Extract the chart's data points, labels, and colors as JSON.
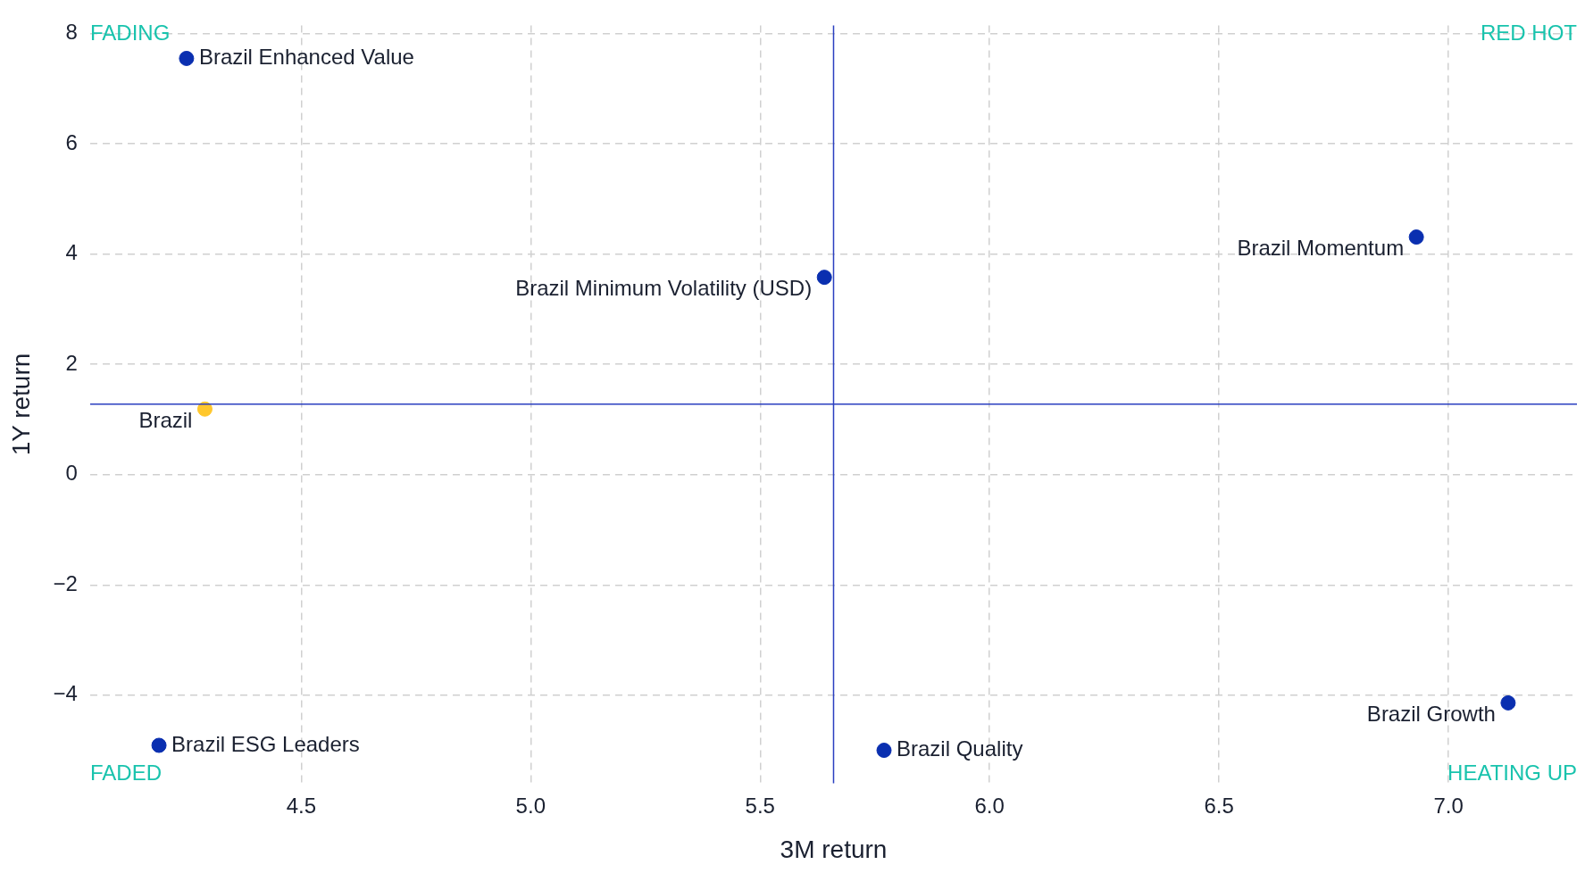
{
  "chart_data": {
    "type": "scatter",
    "xlabel": "3M return",
    "ylabel": "1Y return",
    "xlim": [
      4.04,
      7.28
    ],
    "ylim": [
      -5.6,
      8.15
    ],
    "xticks": [
      4.5,
      {
        "value": 5,
        "label": "5.0"
      },
      5.5,
      {
        "value": 6,
        "label": "6.0"
      },
      6.5,
      {
        "value": 7,
        "label": "7.0"
      }
    ],
    "yticks": [
      -4,
      -2,
      0,
      2,
      4,
      6,
      8
    ],
    "grid": true,
    "legend": false,
    "marker": "circle",
    "series": [
      {
        "name": "Brazil Enhanced Value",
        "color": "#0a2fb0",
        "x": [
          4.25
        ],
        "values": [
          7.55
        ]
      },
      {
        "name": "Brazil",
        "color": "#ffc72c",
        "x": [
          4.29
        ],
        "values": [
          1.19
        ]
      },
      {
        "name": "Brazil Minimum Volatility (USD)",
        "color": "#0a2fb0",
        "x": [
          5.64
        ],
        "values": [
          3.58
        ]
      },
      {
        "name": "Brazil Momentum",
        "color": "#0a2fb0",
        "x": [
          6.93
        ],
        "values": [
          4.31
        ]
      },
      {
        "name": "Brazil Growth",
        "color": "#0a2fb0",
        "x": [
          7.13
        ],
        "values": [
          -4.14
        ]
      },
      {
        "name": "Brazil Quality",
        "color": "#0a2fb0",
        "x": [
          5.77
        ],
        "values": [
          -5.0
        ]
      },
      {
        "name": "Brazil ESG Leaders",
        "color": "#0a2fb0",
        "x": [
          4.19
        ],
        "values": [
          -4.91
        ]
      }
    ],
    "ref_lines": [
      {
        "axis": "x",
        "value": 5.66,
        "color": "#2a3fc0"
      },
      {
        "axis": "y",
        "value": 1.28,
        "color": "#2a3fc0"
      }
    ],
    "annotations": [
      "FADING",
      "RED HOT",
      "FADED",
      "HEATING UP"
    ]
  }
}
